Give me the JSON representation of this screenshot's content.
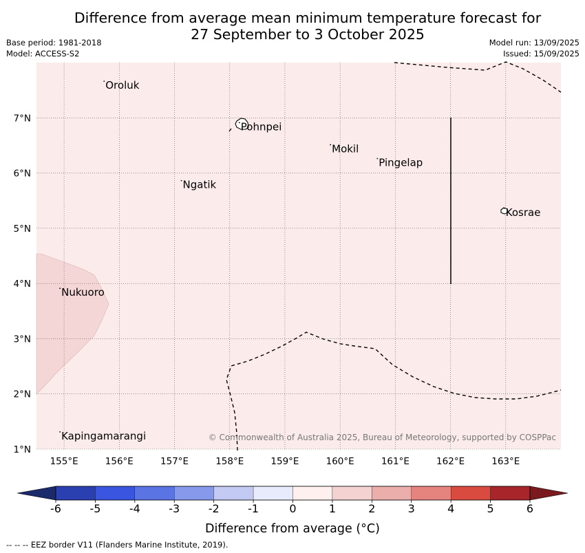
{
  "title_line1": "Difference from average mean minimum temperature forecast for",
  "title_line2": "27 September to 3 October 2025",
  "base_period": "Base period: 1981-2018",
  "model": "Model: ACCESS-S2",
  "model_run": "Model run: 13/09/2025",
  "issued": "Issued: 15/09/2025",
  "copyright": "© Commonwealth of Australia 2025, Bureau of Meteorology, supported by COSPPac",
  "footer_legend": "--  --  -- EEZ border V11 (Flanders Marine Institute, 2019).",
  "colorbar": {
    "title": "Difference from average (°C)",
    "ticks": [
      "-6",
      "-5",
      "-4",
      "-3",
      "-2",
      "-1",
      "0",
      "1",
      "2",
      "3",
      "4",
      "5",
      "6"
    ],
    "colors": {
      "under": "#1b2a6b",
      "bins": [
        "#2a40b0",
        "#3a55df",
        "#5a74e3",
        "#8799ea",
        "#c2c9f3",
        "#e8ebfb",
        "#fdf0ef",
        "#f3d3d2",
        "#ecaeab",
        "#e5847e",
        "#d94a3f",
        "#a8262a"
      ],
      "over": "#7a1a1f"
    }
  },
  "map": {
    "lon_range": [
      154.5,
      164.0
    ],
    "lat_range": [
      1.0,
      8.0
    ],
    "lon_ticks": [
      "155°E",
      "156°E",
      "157°E",
      "158°E",
      "159°E",
      "160°E",
      "161°E",
      "162°E",
      "163°E"
    ],
    "lat_ticks": [
      "1°N",
      "2°N",
      "3°N",
      "4°N",
      "5°N",
      "6°N",
      "7°N"
    ],
    "background_color": "#fbeceb",
    "anomaly_patch_color": "#f3d6d5",
    "places": [
      {
        "name": "Oroluk",
        "lon": 155.75,
        "lat": 7.6
      },
      {
        "name": "Pohnpei",
        "lon": 158.2,
        "lat": 6.85
      },
      {
        "name": "Mokil",
        "lon": 159.85,
        "lat": 6.45
      },
      {
        "name": "Pingelap",
        "lon": 160.7,
        "lat": 6.2
      },
      {
        "name": "Ngatik",
        "lon": 157.15,
        "lat": 5.8
      },
      {
        "name": "Kosrae",
        "lon": 163.0,
        "lat": 5.3
      },
      {
        "name": "Nukuoro",
        "lon": 154.95,
        "lat": 3.85
      },
      {
        "name": "Kapingamarangi",
        "lon": 154.95,
        "lat": 1.25
      }
    ]
  }
}
